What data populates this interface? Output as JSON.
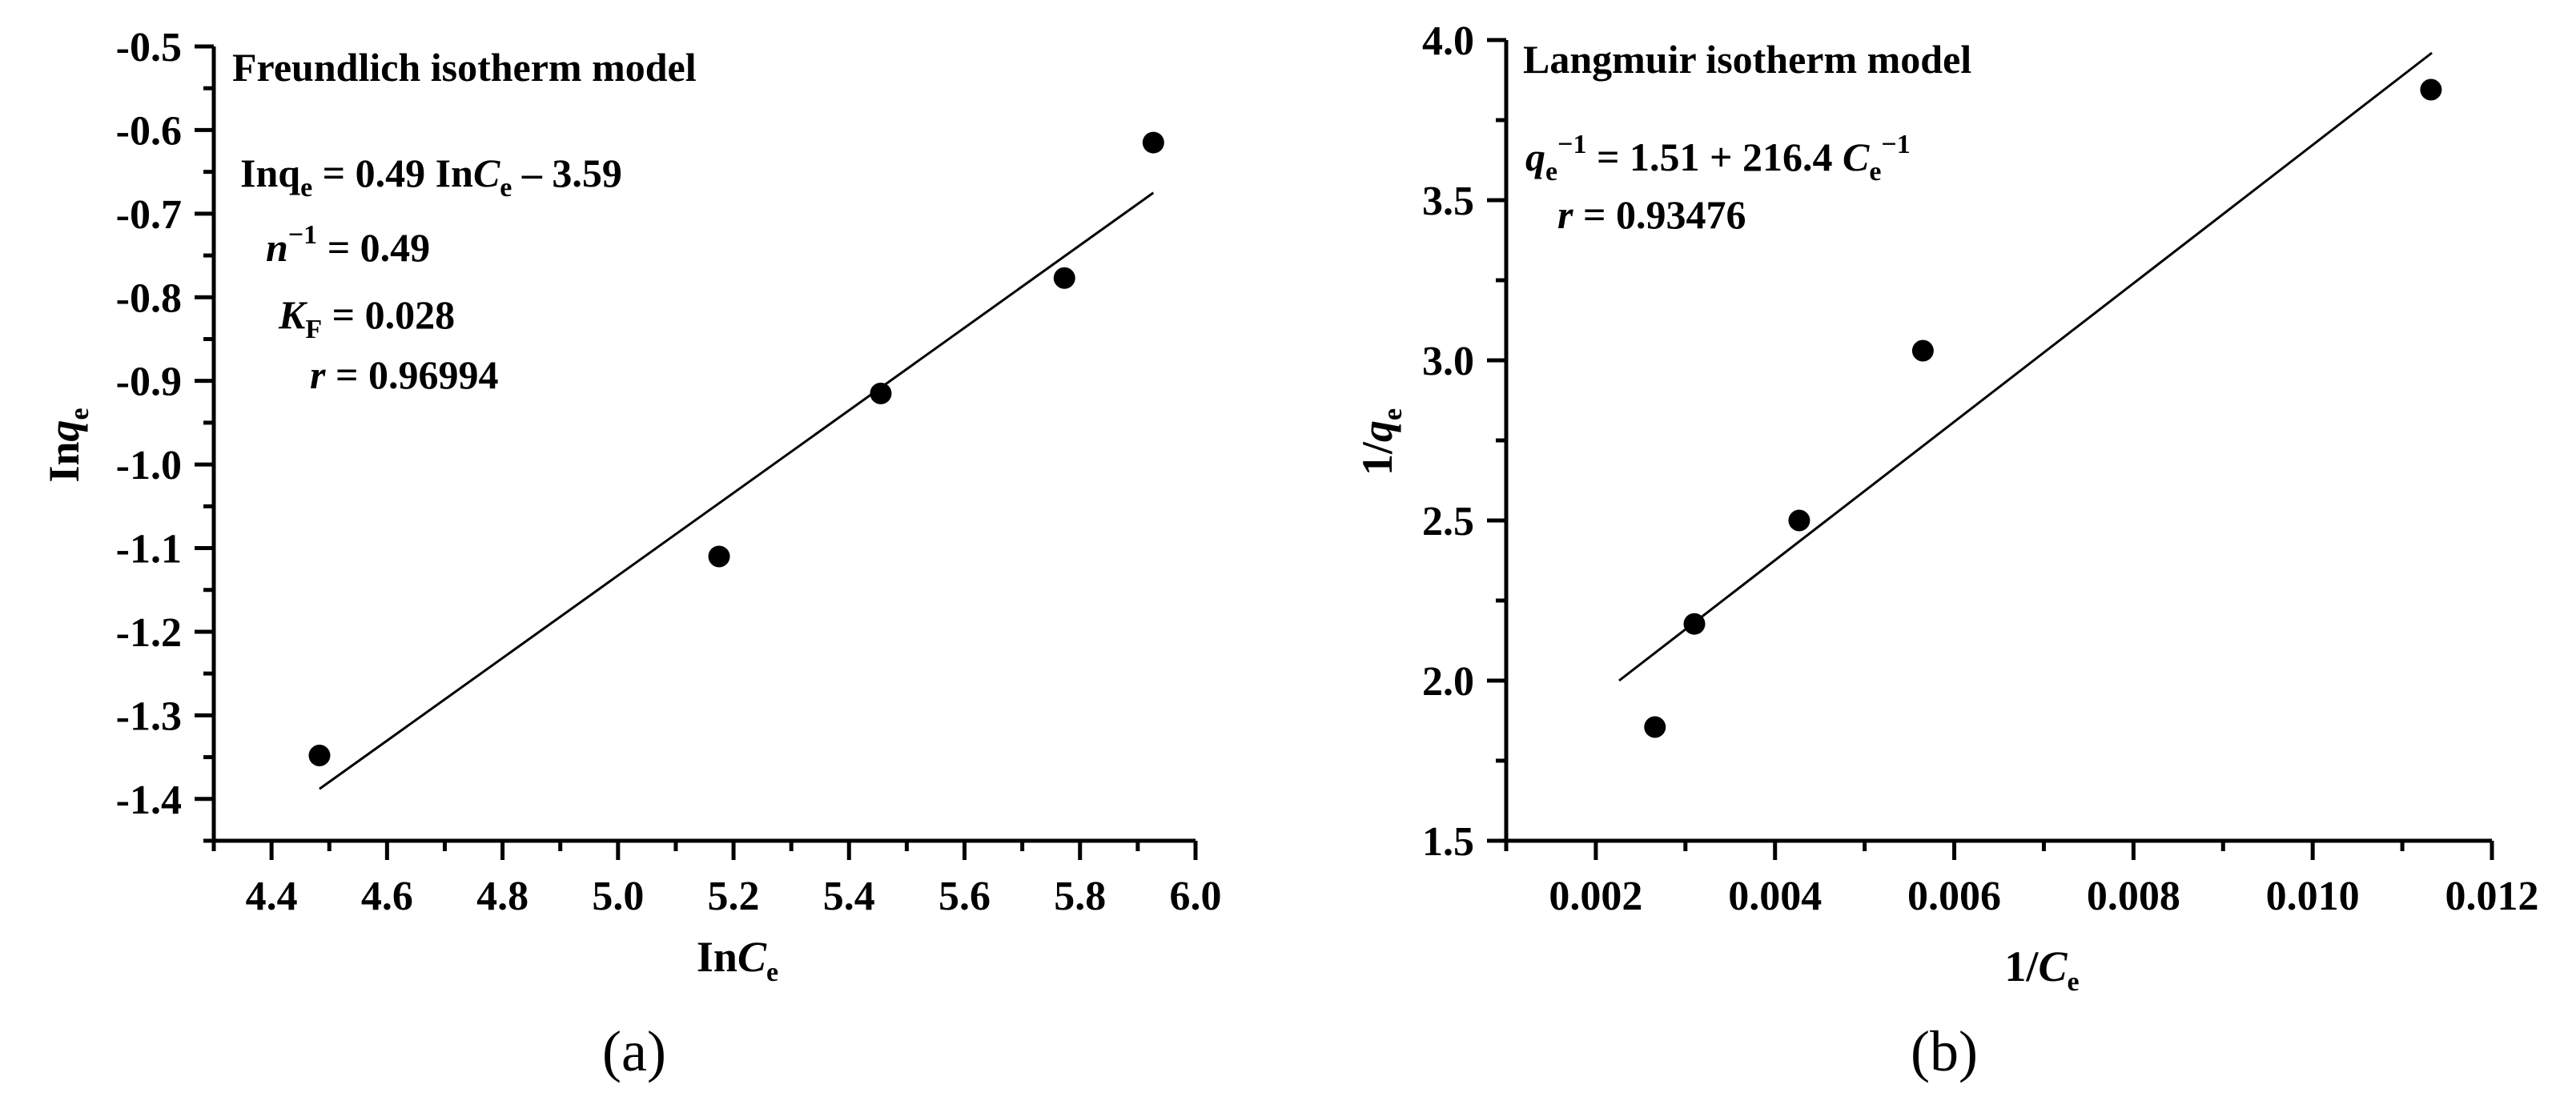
{
  "figure": {
    "panels": [
      {
        "id": "a",
        "panel_label": "(a)",
        "annotation": {
          "title": "Freundlich isotherm model",
          "lines": [
            {
              "parts": [
                [
                  "Inq",
                  "n"
                ],
                [
                  "e",
                  "sub"
                ],
                [
                  " = 0.49 In",
                  "n"
                ],
                [
                  "C",
                  "i"
                ],
                [
                  "e",
                  "sub"
                ],
                [
                  " – 3.59",
                  "n"
                ]
              ]
            },
            {
              "parts": [
                [
                  "n",
                  "i"
                ],
                [
                  "−1",
                  "sup"
                ],
                [
                  " = 0.49",
                  "n"
                ]
              ]
            },
            {
              "parts": [
                [
                  "K",
                  "i"
                ],
                [
                  "F",
                  "sub"
                ],
                [
                  " = 0.028",
                  "n"
                ]
              ]
            },
            {
              "parts": [
                [
                  "r",
                  "i"
                ],
                [
                  " = 0.96994",
                  "n"
                ]
              ]
            }
          ]
        },
        "x_axis_label": {
          "main": "In",
          "italic": "C",
          "sub": "e"
        },
        "y_axis_label": {
          "main": "In",
          "italic": "q",
          "sub": "e"
        }
      },
      {
        "id": "b",
        "panel_label": "(b)",
        "annotation": {
          "title": "Langmuir isotherm model",
          "lines": [
            {
              "parts": [
                [
                  "q",
                  "i"
                ],
                [
                  "e",
                  "sub"
                ],
                [
                  "−1",
                  "sup"
                ],
                [
                  " = 1.51 + 216.4 ",
                  "n"
                ],
                [
                  "C",
                  "i"
                ],
                [
                  "e",
                  "sub"
                ],
                [
                  "−1",
                  "sup"
                ]
              ]
            },
            {
              "parts": [
                [
                  "r",
                  "i"
                ],
                [
                  " = 0.93476",
                  "n"
                ]
              ]
            }
          ]
        },
        "x_axis_label": {
          "main": "1/",
          "italic": "C",
          "sub": "e"
        },
        "y_axis_label": {
          "main": "1/",
          "italic": "q",
          "sub": "e"
        }
      }
    ]
  },
  "chart_data": [
    {
      "type": "scatter",
      "title": "Freundlich isotherm model",
      "xlabel": "InCe",
      "ylabel": "Inqe",
      "xlim": [
        4.3,
        6.0
      ],
      "ylim": [
        -1.45,
        -0.5
      ],
      "xticks": [
        4.4,
        4.6,
        4.8,
        5.0,
        5.2,
        5.4,
        5.6,
        5.8,
        6.0
      ],
      "xtick_labels": [
        "4.4",
        "4.6",
        "4.8",
        "5.0",
        "5.2",
        "5.4",
        "5.6",
        "5.8",
        "6.0"
      ],
      "yticks": [
        -0.5,
        -0.6,
        -0.7,
        -0.8,
        -0.9,
        -1.0,
        -1.1,
        -1.2,
        -1.3,
        -1.4
      ],
      "ytick_labels": [
        "-0.5",
        "-0.6",
        "-0.7",
        "-0.8",
        "-0.9",
        "-1.0",
        "-1.1",
        "-1.2",
        "-1.3",
        "-1.4"
      ],
      "x_minor_step": 0.1,
      "y_minor_step": 0.05,
      "grid": false,
      "series": [
        {
          "name": "experimental",
          "marker": "filled-circle",
          "x": [
            4.483,
            5.175,
            5.455,
            5.773,
            5.927
          ],
          "y": [
            -1.348,
            -1.11,
            -0.915,
            -0.777,
            -0.615
          ]
        },
        {
          "name": "linear fit",
          "line": true,
          "x": [
            4.483,
            5.927
          ],
          "y": [
            -1.388,
            -0.675
          ]
        }
      ],
      "annotations": [
        "Inqe = 0.49 InCe – 3.59",
        "n−1 = 0.49",
        "KF = 0.028",
        "r = 0.96994"
      ]
    },
    {
      "type": "scatter",
      "title": "Langmuir isotherm model",
      "xlabel": "1/Ce",
      "ylabel": "1/qe",
      "xlim": [
        0.001,
        0.012
      ],
      "ylim": [
        1.5,
        4.0
      ],
      "xticks": [
        0.002,
        0.004,
        0.006,
        0.008,
        0.01,
        0.012
      ],
      "xtick_labels": [
        "0.002",
        "0.004",
        "0.006",
        "0.008",
        "0.010",
        "0.012"
      ],
      "yticks": [
        1.5,
        2.0,
        2.5,
        3.0,
        3.5,
        4.0
      ],
      "ytick_labels": [
        "1.5",
        "2.0",
        "2.5",
        "3.0",
        "3.5",
        "4.0"
      ],
      "x_minor_step": 0.001,
      "y_minor_step": 0.25,
      "grid": false,
      "series": [
        {
          "name": "experimental",
          "marker": "filled-circle",
          "x": [
            0.00266,
            0.0031,
            0.00427,
            0.00565,
            0.01132
          ],
          "y": [
            1.855,
            2.177,
            2.5,
            3.03,
            3.845
          ]
        },
        {
          "name": "linear fit",
          "line": true,
          "x": [
            0.00226,
            0.01133
          ],
          "y": [
            2.0,
            3.96
          ]
        }
      ],
      "annotations": [
        "qe−1 = 1.51 + 216.4 Ce−1",
        "r = 0.93476"
      ]
    }
  ]
}
